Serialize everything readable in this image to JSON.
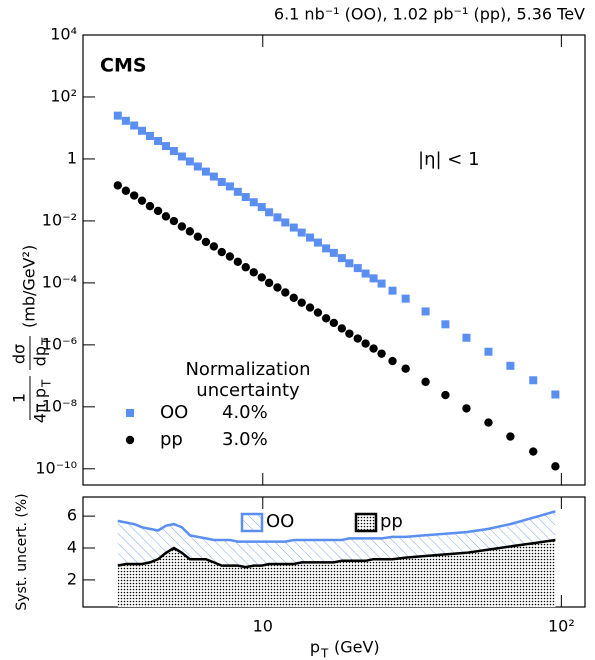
{
  "chart_data": [
    {
      "type": "scatter",
      "header": "6.1 nb⁻¹ (OO), 1.02 pb⁻¹ (pp), 5.36 TeV",
      "experiment": "CMS",
      "annotation": "|η| < 1",
      "ylabel": {
        "num1": "1",
        "den1": "4π p",
        "den1_sub": "T",
        "num2": "dσ",
        "den2": "dp",
        "den2_sub": "T",
        "unit": "(mb/GeV²)"
      },
      "xscale": "log",
      "yscale": "log",
      "xlim": [
        2.5,
        120
      ],
      "xticks": [
        10,
        100
      ],
      "ylim": [
        3e-11,
        10000
      ],
      "yticks": [
        {
          "value": 10000,
          "label": "10⁴"
        },
        {
          "value": 100,
          "label": "10²"
        },
        1,
        {
          "value": 0.01,
          "label": "10⁻²"
        },
        {
          "value": 0.0001,
          "label": "10⁻⁴"
        },
        {
          "value": 1e-06,
          "label": "10⁻⁶"
        },
        {
          "value": 1e-08,
          "label": "10⁻⁸"
        },
        {
          "value": 1e-10,
          "label": "10⁻¹⁰"
        }
      ],
      "legend_title": [
        "Normalization",
        "uncertainty"
      ],
      "x": [
        3.27,
        3.48,
        3.71,
        3.94,
        4.19,
        4.46,
        4.74,
        5.04,
        5.36,
        5.7,
        6.06,
        6.45,
        6.86,
        7.29,
        7.76,
        8.25,
        8.77,
        9.33,
        9.92,
        10.5,
        11.2,
        11.9,
        12.7,
        13.5,
        14.4,
        15.3,
        16.3,
        17.3,
        18.4,
        19.5,
        20.8,
        22.1,
        23.5,
        25.0,
        27.2,
        30.1,
        35.1,
        40.9,
        48.1,
        57.0,
        67.5,
        80.5,
        95.5
      ],
      "series": [
        {
          "name": "OO",
          "color": "#5a8ff0",
          "marker": "square",
          "normalization": {
            "value": 4.0,
            "label": "4.0%"
          },
          "values": [
            25,
            17,
            12,
            8.1,
            5.5,
            3.8,
            2.6,
            1.8,
            1.2,
            0.83,
            0.57,
            0.39,
            0.27,
            0.18,
            0.13,
            0.087,
            0.059,
            0.04,
            0.028,
            0.019,
            0.013,
            0.0089,
            0.0061,
            0.0042,
            0.0029,
            0.002,
            0.0013,
            0.00093,
            0.00063,
            0.00043,
            0.0003,
            0.0002,
            0.00014,
            9.5e-05,
            5.6e-05,
            3.1e-05,
            1.2e-05,
            4.6e-06,
            1.7e-06,
            6e-07,
            2.1e-07,
            7.2e-08,
            2.5e-08
          ]
        },
        {
          "name": "pp",
          "color": "#000000",
          "marker": "circle",
          "normalization": {
            "value": 3.0,
            "label": "3.0%"
          },
          "values": [
            0.14,
            0.094,
            0.066,
            0.045,
            0.03,
            0.021,
            0.014,
            0.0099,
            0.0066,
            0.0046,
            0.0031,
            0.0021,
            0.0015,
            0.00099,
            0.00071,
            0.00048,
            0.00032,
            0.00022,
            0.00015,
            0.0001,
            7.1e-05,
            4.9e-05,
            3.3e-05,
            2.3e-05,
            1.6e-05,
            1.1e-05,
            7.2e-06,
            5.1e-06,
            3.4e-06,
            2.3e-06,
            1.6e-06,
            1.1e-06,
            7.6e-07,
            5.2e-07,
            3e-07,
            1.7e-07,
            6.4e-08,
            2.4e-08,
            8.9e-09,
            3.1e-09,
            1.1e-09,
            3.6e-10,
            1.2e-10
          ]
        }
      ]
    },
    {
      "type": "area",
      "ylabel": "Syst. uncert. (%)",
      "xlabel": {
        "main": "p",
        "sub": "T",
        "unit": "(GeV)"
      },
      "xscale": "log",
      "xlim": [
        2.5,
        120
      ],
      "xticks": [
        10,
        {
          "value": 100,
          "label": "10²"
        }
      ],
      "ylim": [
        0.3,
        7.2
      ],
      "yticks": [
        2,
        4,
        6
      ],
      "x": [
        3.27,
        3.48,
        3.71,
        3.94,
        4.19,
        4.46,
        4.74,
        5.04,
        5.36,
        5.7,
        6.06,
        6.45,
        6.86,
        7.29,
        7.76,
        8.25,
        8.77,
        9.33,
        9.92,
        10.5,
        11.2,
        11.9,
        12.7,
        13.5,
        14.4,
        15.3,
        16.3,
        17.3,
        18.4,
        19.5,
        20.8,
        22.1,
        23.5,
        25.0,
        27.2,
        30.1,
        35.1,
        40.9,
        48.1,
        57.0,
        67.5,
        80.5,
        95.5
      ],
      "series": [
        {
          "name": "OO",
          "color": "#5a8ff0",
          "fill": "hatch",
          "values": [
            5.7,
            5.6,
            5.5,
            5.3,
            5.2,
            5.1,
            5.4,
            5.5,
            5.3,
            4.8,
            4.7,
            4.6,
            4.5,
            4.5,
            4.5,
            4.4,
            4.4,
            4.4,
            4.4,
            4.4,
            4.4,
            4.4,
            4.5,
            4.5,
            4.5,
            4.5,
            4.5,
            4.5,
            4.5,
            4.6,
            4.6,
            4.6,
            4.6,
            4.6,
            4.7,
            4.7,
            4.8,
            4.9,
            5.0,
            5.2,
            5.5,
            5.9,
            6.3
          ]
        },
        {
          "name": "pp",
          "color": "#000000",
          "fill": "dots",
          "values": [
            2.9,
            3.0,
            3.0,
            3.0,
            3.1,
            3.3,
            3.7,
            4.0,
            3.7,
            3.3,
            3.3,
            3.3,
            3.1,
            2.9,
            2.9,
            2.9,
            2.8,
            2.9,
            2.9,
            3.0,
            3.0,
            3.0,
            3.0,
            3.1,
            3.1,
            3.1,
            3.1,
            3.1,
            3.2,
            3.2,
            3.2,
            3.2,
            3.3,
            3.3,
            3.3,
            3.4,
            3.5,
            3.6,
            3.7,
            3.9,
            4.1,
            4.3,
            4.5
          ]
        }
      ]
    }
  ]
}
